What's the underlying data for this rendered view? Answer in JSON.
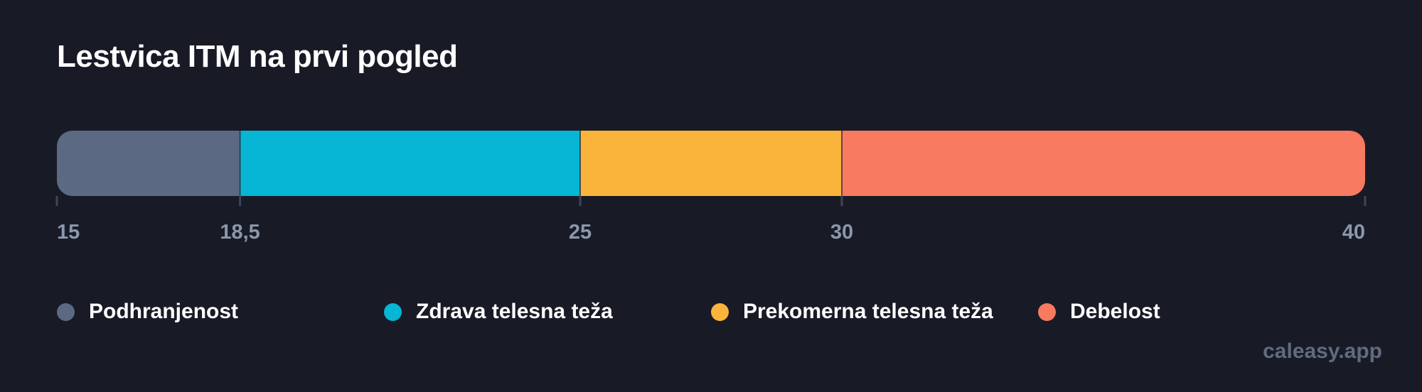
{
  "chart_data": {
    "type": "bar",
    "orientation": "horizontal-stacked-range",
    "title": "Lestvica ITM na prvi pogled",
    "xlim": [
      15,
      40
    ],
    "ticks": [
      {
        "value": 15,
        "label": "15"
      },
      {
        "value": 18.5,
        "label": "18,5"
      },
      {
        "value": 25,
        "label": "25"
      },
      {
        "value": 30,
        "label": "30"
      },
      {
        "value": 40,
        "label": "40"
      }
    ],
    "segments": [
      {
        "name": "Podhranjenost",
        "from": 15,
        "to": 18.5,
        "color": "#5b6a82"
      },
      {
        "name": "Zdrava telesna teža",
        "from": 18.5,
        "to": 25,
        "color": "#06b6d4"
      },
      {
        "name": "Prekomerna telesna teža",
        "from": 25,
        "to": 30,
        "color": "#fab43c"
      },
      {
        "name": "Debelost",
        "from": 30,
        "to": 40,
        "color": "#f87a60"
      }
    ],
    "legend_placement": "bottom"
  },
  "brand": "caleasy.app"
}
